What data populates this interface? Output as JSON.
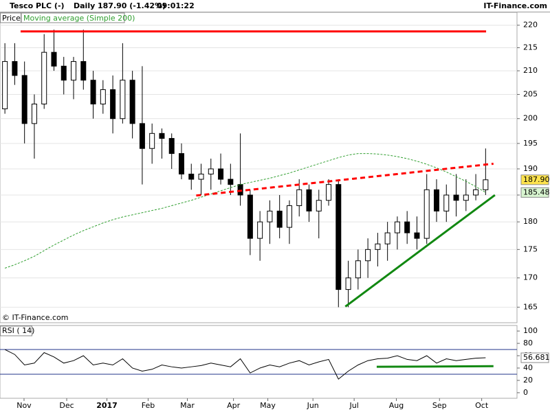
{
  "header": {
    "title": "Tesco PLC (-)",
    "period": "Daily",
    "quote": "187.90 (-1.42%)",
    "time": "09:01:22",
    "site": "IT-Finance.com",
    "price_tag": "Price",
    "copyright": "© IT-Finance.com"
  },
  "chart_data": [
    {
      "type": "candlestick",
      "log_scale": true,
      "grid": true,
      "xlim": [
        -0.5,
        52.2
      ],
      "ylim": [
        162.4,
        222.9
      ],
      "yticks": [
        165,
        170,
        175,
        180,
        185,
        190,
        195,
        200,
        205,
        210,
        215,
        220
      ],
      "up_color": "#ffffff",
      "down_color": "#000000",
      "open": [
        202,
        212,
        209,
        199,
        203,
        214,
        211,
        208,
        212,
        208,
        203,
        206,
        200,
        208,
        199,
        194,
        197,
        196,
        193,
        189,
        188,
        189,
        190,
        188,
        187,
        185,
        177,
        180,
        182,
        179,
        183,
        186,
        182,
        184,
        187,
        168,
        170,
        173,
        175,
        176,
        178,
        180,
        178,
        177,
        186,
        182,
        185,
        184,
        185,
        186
      ],
      "high": [
        216,
        216,
        212,
        205,
        218,
        219,
        213,
        213,
        219,
        210,
        208,
        209,
        216,
        210,
        211,
        199,
        198,
        197,
        195,
        191,
        191,
        192,
        193,
        191,
        197,
        186,
        182,
        184,
        185,
        184,
        188,
        187,
        186,
        188,
        188,
        173,
        175,
        177,
        178,
        180,
        181,
        182,
        181,
        189,
        188,
        187,
        189,
        188,
        189,
        194
      ],
      "low": [
        201,
        207,
        195,
        192,
        202,
        210,
        205,
        204,
        206,
        200,
        201,
        197,
        199,
        196,
        187,
        191,
        192,
        190,
        188,
        186,
        185,
        186,
        187,
        185,
        183,
        174,
        173,
        176,
        177,
        176,
        181,
        180,
        177,
        183,
        165,
        165,
        168,
        170,
        172,
        173,
        175,
        176,
        175,
        176,
        180,
        180,
        181,
        182,
        184,
        185
      ],
      "close": [
        212,
        209,
        199,
        203,
        214,
        211,
        208,
        212,
        208,
        203,
        206,
        200,
        208,
        199,
        194,
        197,
        196,
        193,
        189,
        188,
        189,
        190,
        188,
        187,
        185,
        177,
        180,
        182,
        179,
        183,
        186,
        182,
        184,
        187,
        168,
        170,
        173,
        175,
        176,
        178,
        180,
        178,
        177,
        186,
        182,
        185,
        184,
        185,
        186,
        187.9
      ],
      "series": [
        {
          "name": "Moving average (Simple 200)",
          "color": "#2e9e2e",
          "values": [
            171.7,
            172.3,
            173.0,
            173.8,
            174.8,
            175.8,
            176.7,
            177.6,
            178.4,
            179.1,
            179.8,
            180.4,
            180.9,
            181.3,
            181.7,
            182.1,
            182.5,
            183.0,
            183.5,
            184.0,
            184.6,
            185.2,
            185.8,
            186.4,
            187.0,
            187.4,
            187.8,
            188.2,
            188.7,
            189.2,
            189.8,
            190.4,
            191.0,
            191.6,
            192.2,
            192.7,
            193.0,
            193.0,
            192.9,
            192.7,
            192.4,
            192.0,
            191.5,
            190.9,
            190.2,
            189.4,
            188.5,
            187.6,
            186.6,
            185.48
          ]
        }
      ],
      "lines": [
        {
          "color": "#ff0000",
          "dashed": false,
          "x": [
            1.6,
            49.05
          ],
          "y": [
            218.6,
            218.6
          ]
        },
        {
          "color": "#ff0000",
          "dashed": true,
          "x": [
            19.5,
            49.8
          ],
          "y": [
            184.9,
            191.0
          ]
        },
        {
          "color": "#118811",
          "dashed": false,
          "x": [
            34.7,
            49.95
          ],
          "y": [
            165.1,
            185.0
          ]
        }
      ],
      "markers": {
        "values": [
          187.9,
          185.48
        ],
        "value_labels": [
          "187.90",
          "185.48"
        ],
        "colors": [
          "#ffe44d",
          "#d8f5d0"
        ]
      }
    },
    {
      "type": "line",
      "xlim": [
        -0.5,
        52.2
      ],
      "ylim": [
        -9,
        109
      ],
      "yticks": [
        0,
        20,
        40,
        60,
        80,
        100
      ],
      "levels": [
        30,
        70
      ],
      "xticks": [
        {
          "value": 1.95,
          "label": "Nov"
        },
        {
          "value": 6.3,
          "label": "Dec"
        },
        {
          "value": 10.4,
          "label": "2017"
        },
        {
          "value": 14.6,
          "label": "Feb"
        },
        {
          "value": 18.6,
          "label": "Mar"
        },
        {
          "value": 23.3,
          "label": "Apr"
        },
        {
          "value": 26.8,
          "label": "May"
        },
        {
          "value": 31.4,
          "label": "Jun"
        },
        {
          "value": 35.6,
          "label": "Jul"
        },
        {
          "value": 39.9,
          "label": "Aug"
        },
        {
          "value": 44.3,
          "label": "Sep"
        },
        {
          "value": 48.6,
          "label": "Oct"
        }
      ],
      "series": [
        {
          "name": "RSI ( 14)",
          "color": "#000000",
          "values": [
            70,
            62,
            45,
            48,
            65,
            58,
            48,
            52,
            60,
            45,
            48,
            45,
            55,
            40,
            35,
            38,
            45,
            42,
            40,
            42,
            44,
            48,
            45,
            42,
            55,
            32,
            40,
            45,
            42,
            48,
            52,
            45,
            50,
            54,
            22,
            35,
            45,
            52,
            55,
            56,
            60,
            54,
            52,
            60,
            48,
            55,
            52,
            54,
            56,
            56.681
          ]
        }
      ],
      "lines": [
        {
          "color": "#118811",
          "dashed": false,
          "x": [
            37.9,
            49.8
          ],
          "y": [
            42,
            43
          ]
        }
      ],
      "markers": {
        "values": [
          56.681
        ],
        "colors": [
          "#ffffff"
        ]
      }
    }
  ]
}
